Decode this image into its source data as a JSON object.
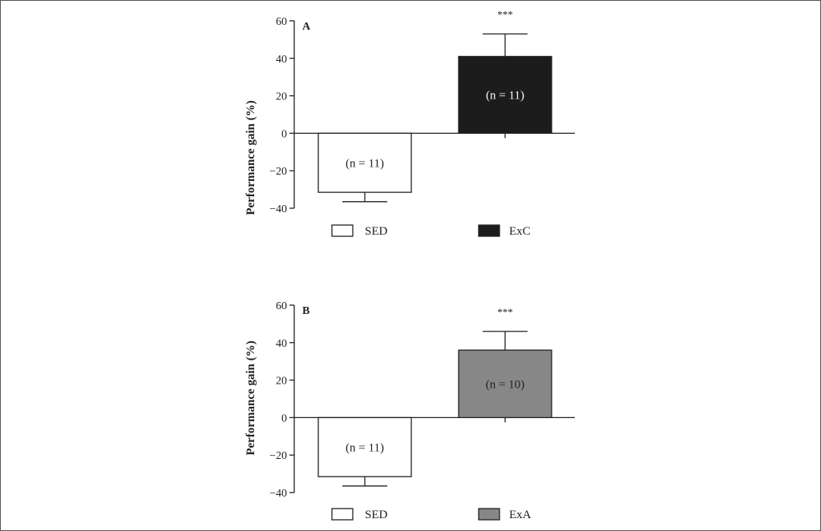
{
  "chart_data": [
    {
      "type": "bar",
      "panel": "A",
      "ylabel": "Performance gain (%)",
      "ylim": [
        -40,
        60
      ],
      "yticks": [
        -40,
        -20,
        0,
        20,
        40,
        60
      ],
      "ytick_labels": [
        "−40",
        "−20",
        "0",
        "20",
        "40",
        "60"
      ],
      "categories": [
        "SED",
        "ExC"
      ],
      "values": [
        -31.5,
        41
      ],
      "errors": [
        5,
        12
      ],
      "bar_labels": [
        "(n = 11)",
        "(n = 11)"
      ],
      "significance": "***",
      "colors": [
        "#ffffff",
        "#1c1c1c"
      ],
      "legend": [
        "SED",
        "ExC"
      ]
    },
    {
      "type": "bar",
      "panel": "B",
      "ylabel": "Performance gain (%)",
      "ylim": [
        -40,
        60
      ],
      "yticks": [
        -40,
        -20,
        0,
        20,
        40,
        60
      ],
      "ytick_labels": [
        "−40",
        "−20",
        "0",
        "20",
        "40",
        "60"
      ],
      "categories": [
        "SED",
        "ExA"
      ],
      "values": [
        -31.5,
        36
      ],
      "errors": [
        5,
        10
      ],
      "bar_labels": [
        "(n = 11)",
        "(n = 10)"
      ],
      "significance": "***",
      "colors": [
        "#ffffff",
        "#878787"
      ],
      "legend": [
        "SED",
        "ExA"
      ]
    }
  ]
}
